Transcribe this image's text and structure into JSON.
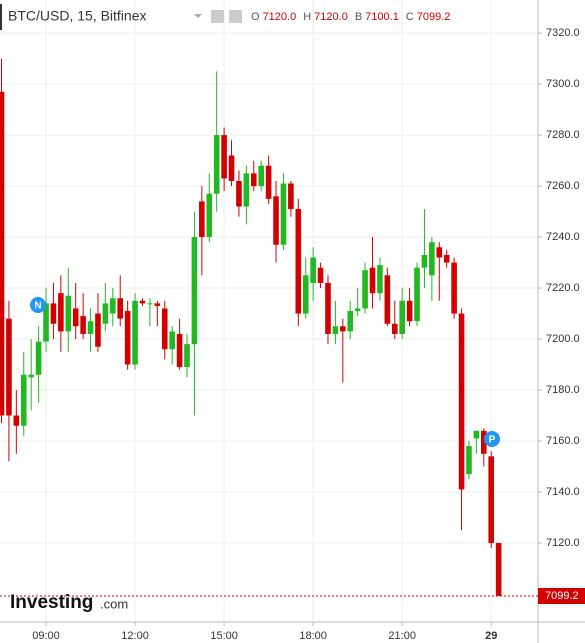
{
  "chart_data": {
    "type": "candlestick",
    "title": "BTC/USD, 15, Bitfinex",
    "ohlc_header": [
      {
        "key": "O",
        "value": "7120.0"
      },
      {
        "key": "H",
        "value": "7120.0"
      },
      {
        "key": "B",
        "value": "7100.1"
      },
      {
        "key": "C",
        "value": "7099.2"
      }
    ],
    "categories": [
      null,
      null,
      null,
      null,
      null,
      null,
      "09:00",
      null,
      null,
      null,
      null,
      null,
      null,
      null,
      null,
      null,
      null,
      null,
      "12:00",
      null,
      null,
      null,
      null,
      null,
      null,
      null,
      null,
      null,
      null,
      null,
      "15:00",
      null,
      null,
      null,
      null,
      null,
      null,
      null,
      null,
      null,
      null,
      null,
      "18:00",
      null,
      null,
      null,
      null,
      null,
      null,
      null,
      null,
      null,
      null,
      null,
      "21:00",
      null,
      null,
      null,
      null,
      null,
      null,
      null,
      null,
      null,
      null,
      null,
      "29",
      null
    ],
    "open": [
      7297,
      7208,
      7170,
      7166,
      7185,
      7186,
      7199,
      7214,
      7218,
      7203,
      7212,
      7209,
      7202,
      7210,
      7206,
      7210,
      7216,
      7211,
      7190,
      7215,
      7214,
      7214,
      7212,
      7196,
      7202,
      7189,
      7198,
      7254,
      7240,
      7257,
      7280,
      7272,
      7262,
      7252,
      7265,
      7260,
      7268,
      7256,
      7237,
      7261,
      7251,
      7210,
      7222,
      7228,
      7222,
      7202,
      7205,
      7203,
      7211,
      7212,
      7228,
      7218,
      7225,
      7206,
      7202,
      7215,
      7207,
      7228,
      7225,
      7236,
      7233,
      7230,
      7210,
      7147,
      7161,
      7164,
      7154,
      7120
    ],
    "high": [
      7310,
      7215,
      7180,
      7195,
      7200,
      7205,
      7220,
      7222,
      7225,
      7228,
      7222,
      7218,
      7212,
      7218,
      7222,
      7220,
      7225,
      7215,
      7218,
      7216,
      7216,
      7215,
      7215,
      7205,
      7208,
      7202,
      7250,
      7260,
      7265,
      7305,
      7283,
      7278,
      7266,
      7268,
      7270,
      7270,
      7272,
      7262,
      7265,
      7262,
      7255,
      7232,
      7236,
      7230,
      7225,
      7215,
      7208,
      7215,
      7220,
      7230,
      7240,
      7232,
      7228,
      7215,
      7220,
      7220,
      7230,
      7251,
      7240,
      7238,
      7235,
      7232,
      7212,
      7160,
      7164,
      7165,
      7156,
      7120
    ],
    "low": [
      7167,
      7152,
      7155,
      7162,
      7172,
      7175,
      7195,
      7200,
      7195,
      7195,
      7200,
      7200,
      7195,
      7195,
      7203,
      7205,
      7205,
      7188,
      7188,
      7213,
      7205,
      7205,
      7192,
      7190,
      7188,
      7185,
      7170,
      7225,
      7238,
      7250,
      7258,
      7260,
      7248,
      7245,
      7258,
      7258,
      7253,
      7230,
      7235,
      7248,
      7205,
      7208,
      7215,
      7220,
      7198,
      7198,
      7183,
      7200,
      7209,
      7210,
      7212,
      7215,
      7205,
      7200,
      7200,
      7205,
      7205,
      7220,
      7215,
      7215,
      7228,
      7208,
      7125,
      7145,
      7155,
      7150,
      7118,
      7099.2
    ],
    "close": [
      7170,
      7170,
      7166,
      7186,
      7186,
      7199,
      7214,
      7206,
      7203,
      7217,
      7205,
      7202,
      7207,
      7197,
      7214,
      7216,
      7208,
      7190,
      7215,
      7214,
      7214,
      7213,
      7196,
      7203,
      7189,
      7198,
      7240,
      7240,
      7257,
      7280,
      7263,
      7262,
      7252,
      7265,
      7260,
      7268,
      7255,
      7237,
      7261,
      7251,
      7210,
      7225,
      7232,
      7222,
      7202,
      7205,
      7203,
      7211,
      7212,
      7227,
      7218,
      7229,
      7206,
      7202,
      7215,
      7207,
      7228,
      7233,
      7238,
      7232,
      7230,
      7210,
      7141,
      7158,
      7164,
      7155,
      7120,
      7099.2
    ],
    "up_color": "#22b822",
    "down_color": "#d20000",
    "ylim": [
      7089,
      7333
    ],
    "yticks": [
      {
        "value": 7120,
        "label": "7120.0"
      },
      {
        "value": 7140,
        "label": "7140.0"
      },
      {
        "value": 7160,
        "label": "7160.0"
      },
      {
        "value": 7180,
        "label": "7180.0"
      },
      {
        "value": 7200,
        "label": "7200.0"
      },
      {
        "value": 7220,
        "label": "7220.0"
      },
      {
        "value": 7240,
        "label": "7240.0"
      },
      {
        "value": 7260,
        "label": "7260.0"
      },
      {
        "value": 7280,
        "label": "7280.0"
      },
      {
        "value": 7300,
        "label": "7300.0"
      },
      {
        "value": 7320,
        "label": "7320.0"
      }
    ],
    "grid": true,
    "last_price": {
      "value": 7099.2,
      "label": "7099.2"
    },
    "event_markers": [
      "N",
      "P"
    ],
    "brand": [
      "Investing",
      ".com"
    ]
  }
}
